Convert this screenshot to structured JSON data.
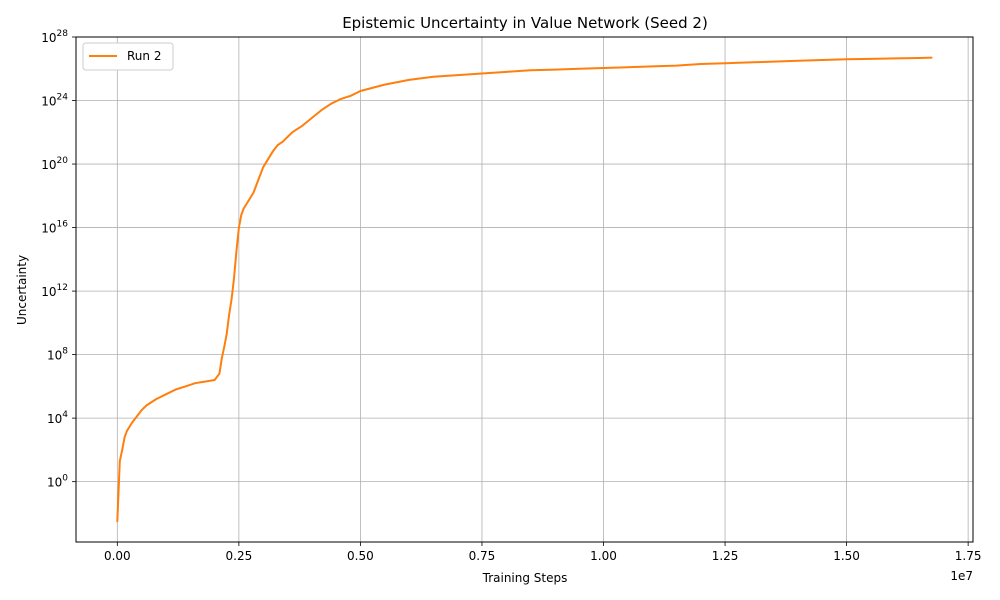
{
  "chart_data": {
    "type": "line",
    "title": "Epistemic Uncertainty in Value Network (Seed 2)",
    "xlabel": "Training Steps",
    "ylabel": "Uncertainty",
    "x_offset_label": "1e7",
    "xlim": [
      -850000,
      17600000
    ],
    "ylim_log10": [
      -3.8,
      28
    ],
    "yscale": "log",
    "grid": true,
    "legend_position": "upper-left",
    "x_ticks": [
      0,
      2500000,
      5000000,
      7500000,
      10000000,
      12500000,
      15000000,
      17500000
    ],
    "x_tick_labels": [
      "0.00",
      "0.25",
      "0.50",
      "0.75",
      "1.00",
      "1.25",
      "1.50",
      "1.75"
    ],
    "y_tick_exponents": [
      0,
      4,
      8,
      12,
      16,
      20,
      24,
      28
    ],
    "y_tick_base": "10",
    "series": [
      {
        "name": "Run 2",
        "color": "#ff7f0e",
        "x": [
          0,
          20000,
          50000,
          100000,
          150000,
          200000,
          300000,
          400000,
          500000,
          600000,
          800000,
          1000000,
          1200000,
          1400000,
          1600000,
          1800000,
          2000000,
          2100000,
          2150000,
          2200000,
          2250000,
          2300000,
          2350000,
          2400000,
          2450000,
          2500000,
          2550000,
          2600000,
          2700000,
          2800000,
          2900000,
          3000000,
          3100000,
          3200000,
          3300000,
          3400000,
          3500000,
          3600000,
          3700000,
          3800000,
          4000000,
          4200000,
          4400000,
          4600000,
          4800000,
          5000000,
          5500000,
          6000000,
          6500000,
          7000000,
          7500000,
          8000000,
          8500000,
          9000000,
          9500000,
          10000000,
          10500000,
          11000000,
          11500000,
          12000000,
          12500000,
          13000000,
          13500000,
          14000000,
          14500000,
          15000000,
          15500000,
          16000000,
          16500000,
          16750000
        ],
        "log10_y": [
          -2.5,
          -1.0,
          1.3,
          2.0,
          2.8,
          3.2,
          3.7,
          4.1,
          4.5,
          4.8,
          5.2,
          5.5,
          5.8,
          6.0,
          6.2,
          6.3,
          6.4,
          6.8,
          7.8,
          8.5,
          9.3,
          10.5,
          11.5,
          12.8,
          14.5,
          16.0,
          16.8,
          17.2,
          17.7,
          18.2,
          19.0,
          19.8,
          20.3,
          20.8,
          21.2,
          21.4,
          21.7,
          22.0,
          22.2,
          22.4,
          22.9,
          23.4,
          23.8,
          24.1,
          24.3,
          24.6,
          25.0,
          25.3,
          25.5,
          25.6,
          25.7,
          25.8,
          25.9,
          25.95,
          26.0,
          26.05,
          26.1,
          26.15,
          26.2,
          26.3,
          26.35,
          26.4,
          26.45,
          26.5,
          26.55,
          26.6,
          26.62,
          26.65,
          26.68,
          26.7
        ]
      }
    ]
  }
}
